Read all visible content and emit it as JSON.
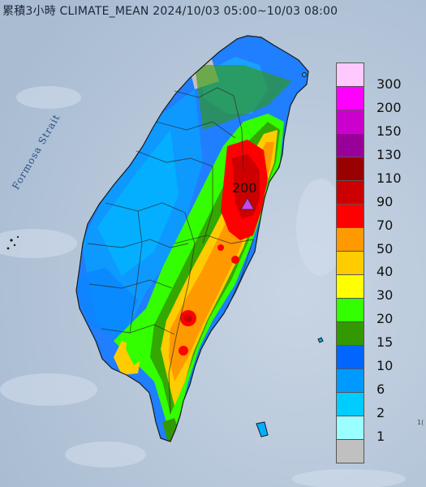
{
  "title": "累積3小時 CLIMATE_MEAN 2024/10/03 05:00~10/03 08:00",
  "strait_label": "Formosa Strait",
  "peak": {
    "value_label": "200",
    "marker_color": "#cc44ee"
  },
  "edge_note": "1(",
  "legend": {
    "labels": [
      "300",
      "200",
      "150",
      "130",
      "110",
      "90",
      "70",
      "50",
      "40",
      "30",
      "20",
      "15",
      "10",
      "6",
      "2",
      "1"
    ],
    "colors": [
      "#ffc8ff",
      "#ff00ff",
      "#cc00cc",
      "#990099",
      "#990000",
      "#cc0000",
      "#ff0000",
      "#ff9900",
      "#ffcc00",
      "#ffff00",
      "#33ff00",
      "#339900",
      "#0066ff",
      "#0099ff",
      "#00ccff",
      "#99ffff",
      "#c0c0c0"
    ]
  }
}
